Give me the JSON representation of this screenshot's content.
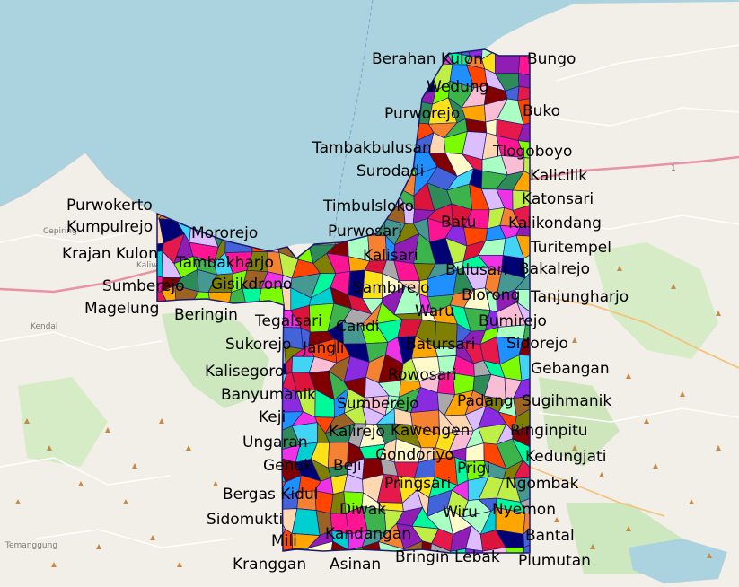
{
  "basemap": {
    "sea_color": "#aad3df",
    "land_color": "#f2efe9",
    "road_color": "#e892a2",
    "minor_road_color": "#ffffff",
    "small_labels": [
      "Cepiring",
      "Kendal",
      "Kaliw",
      "Temanggung",
      "1"
    ]
  },
  "overlay": {
    "region_border_color": "#1a1a6a",
    "palette": [
      "#e6194b",
      "#3cb44b",
      "#ffe119",
      "#4363d8",
      "#f58231",
      "#911eb4",
      "#42d4f4",
      "#f032e6",
      "#bfef45",
      "#fabed4",
      "#469990",
      "#dcbeff",
      "#9a6324",
      "#fffac8",
      "#800000",
      "#aaffc3",
      "#808000",
      "#ffd8b1",
      "#000075",
      "#a9a9a9",
      "#2e8b57",
      "#ff4500",
      "#1e90ff",
      "#ff1493",
      "#7cfc00",
      "#00ced1",
      "#dc143c",
      "#8a2be2",
      "#00fa9a",
      "#ffa500"
    ]
  },
  "labels": [
    {
      "text": "Berahan Kulon"
    },
    {
      "text": "Bungo"
    },
    {
      "text": "Wedung"
    },
    {
      "text": "Purworejo"
    },
    {
      "text": "Buko"
    },
    {
      "text": "Tambakbulusan"
    },
    {
      "text": "Tlogoboyo"
    },
    {
      "text": "Surodadi"
    },
    {
      "text": "Kalicilik"
    },
    {
      "text": "Katonsari"
    },
    {
      "text": "Purwokerto"
    },
    {
      "text": "Timbulsloko"
    },
    {
      "text": "Kumpulrejo"
    },
    {
      "text": "Batu"
    },
    {
      "text": "Kalikondang"
    },
    {
      "text": "Mororejo"
    },
    {
      "text": "Purwosari"
    },
    {
      "text": "Turitempel"
    },
    {
      "text": "Krajan Kulon"
    },
    {
      "text": "Kalisari"
    },
    {
      "text": "Tambakharjo"
    },
    {
      "text": "Bulusari"
    },
    {
      "text": "Bakalrejo"
    },
    {
      "text": "Sumberejo"
    },
    {
      "text": "Gisikdrono"
    },
    {
      "text": "Sambirejo"
    },
    {
      "text": "Blorong"
    },
    {
      "text": "Tanjungharjo"
    },
    {
      "text": "Magelung"
    },
    {
      "text": "Beringin"
    },
    {
      "text": "Waru"
    },
    {
      "text": "Tegalsari"
    },
    {
      "text": "Candi"
    },
    {
      "text": "Bumirejo"
    },
    {
      "text": "Sukorejo"
    },
    {
      "text": "Jangli"
    },
    {
      "text": "Batursari"
    },
    {
      "text": "Sidorejo"
    },
    {
      "text": "Gebangan"
    },
    {
      "text": "Kalisegoro"
    },
    {
      "text": "Rowosari"
    },
    {
      "text": "Banyumanik"
    },
    {
      "text": "Sumberejo"
    },
    {
      "text": "Padang"
    },
    {
      "text": "Sugihmanik"
    },
    {
      "text": "Keji"
    },
    {
      "text": "Ringinpitu"
    },
    {
      "text": "Kalirejo"
    },
    {
      "text": "Kawengen"
    },
    {
      "text": "Ungaran"
    },
    {
      "text": "Gondoriyo"
    },
    {
      "text": "Kedungjati"
    },
    {
      "text": "Genuk"
    },
    {
      "text": "Beji"
    },
    {
      "text": "Prigi"
    },
    {
      "text": "Ngombak"
    },
    {
      "text": "Pringsari"
    },
    {
      "text": "Bergas Kidul"
    },
    {
      "text": "Diwak"
    },
    {
      "text": "Nyemon"
    },
    {
      "text": "Sidomukti"
    },
    {
      "text": "Wiru"
    },
    {
      "text": "Kandangan"
    },
    {
      "text": "Bantal"
    },
    {
      "text": "Mili"
    },
    {
      "text": "Bringin"
    },
    {
      "text": "Lebak"
    },
    {
      "text": "Plumutan"
    },
    {
      "text": "Kranggan"
    },
    {
      "text": "Asinan"
    }
  ]
}
